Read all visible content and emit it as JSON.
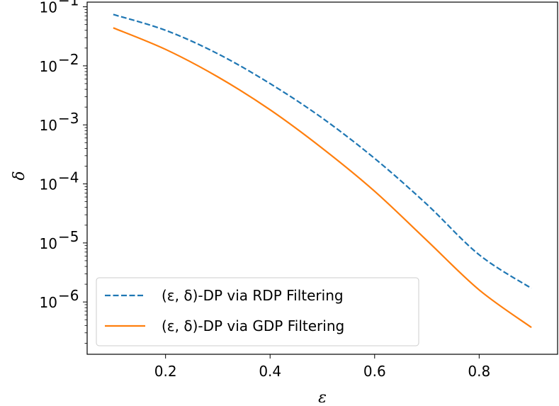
{
  "chart_data": {
    "type": "line",
    "xlabel": "ε",
    "ylabel": "δ",
    "xscale": "linear",
    "yscale": "log",
    "xlim": [
      0.05,
      0.95
    ],
    "ylim": [
      1.3e-07,
      0.12
    ],
    "x_ticks": [
      {
        "value": 0.2,
        "label": "0.2"
      },
      {
        "value": 0.4,
        "label": "0.4"
      },
      {
        "value": 0.6,
        "label": "0.6"
      },
      {
        "value": 0.8,
        "label": "0.8"
      }
    ],
    "y_ticks": [
      {
        "value": 0.1,
        "base": "10",
        "exp": "−1"
      },
      {
        "value": 0.01,
        "base": "10",
        "exp": "−2"
      },
      {
        "value": 0.001,
        "base": "10",
        "exp": "−3"
      },
      {
        "value": 0.0001,
        "base": "10",
        "exp": "−4"
      },
      {
        "value": 1e-05,
        "base": "10",
        "exp": "−5"
      },
      {
        "value": 1e-06,
        "base": "10",
        "exp": "−6"
      }
    ],
    "legend_position": "lower-left",
    "grid": false,
    "series": [
      {
        "name": "(ε, δ)-DP via RDP Filtering",
        "color": "#1f77b4",
        "style": "dashed",
        "x": [
          0.1,
          0.2,
          0.3,
          0.4,
          0.5,
          0.6,
          0.7,
          0.8,
          0.9
        ],
        "y": [
          0.074,
          0.04,
          0.016,
          0.005,
          0.0013,
          0.00027,
          4.5e-05,
          6.3e-06,
          1.7e-06
        ]
      },
      {
        "name": "(ε, δ)-DP via GDP Filtering",
        "color": "#ff7f0e",
        "style": "solid",
        "x": [
          0.1,
          0.2,
          0.3,
          0.4,
          0.5,
          0.6,
          0.7,
          0.8,
          0.9
        ],
        "y": [
          0.044,
          0.019,
          0.0065,
          0.0018,
          0.0004,
          7.5e-05,
          1.1e-05,
          1.6e-06,
          3.7e-07
        ]
      }
    ]
  }
}
